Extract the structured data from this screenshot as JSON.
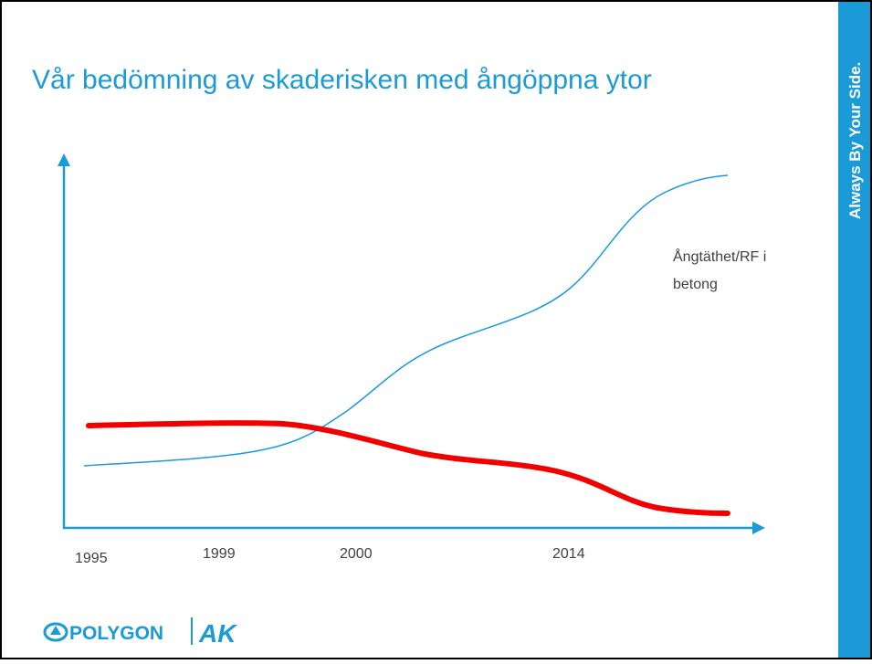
{
  "title": "Vår bedömning av skaderisken med ångöppna ytor",
  "x_labels": [
    "1995",
    "1999",
    "2000",
    "2014"
  ],
  "curve_label": [
    "Ångtäthet/RF i",
    "betong"
  ],
  "side_banner": "Always By Your Side.",
  "logo": {
    "brand": "POLYGON",
    "partner": "AK"
  }
}
